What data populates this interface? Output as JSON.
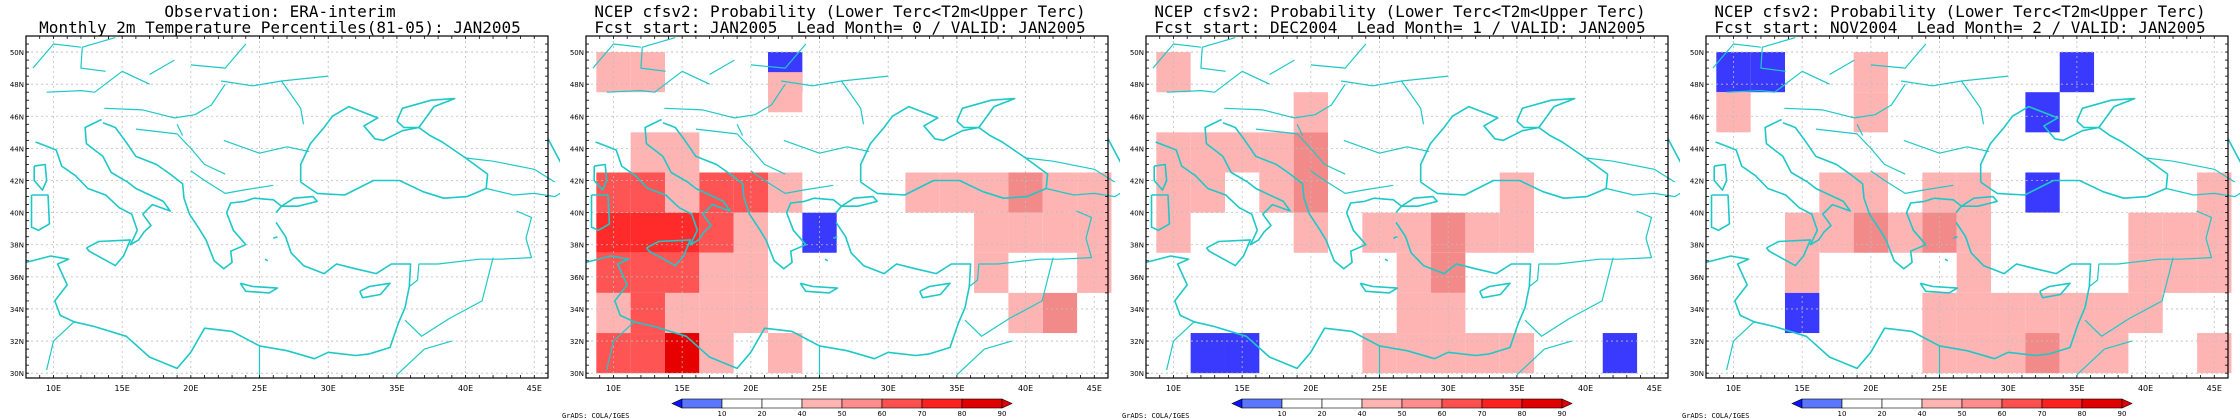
{
  "panels": [
    {
      "id": "obs",
      "title_lines": [
        "Observation: ERA-interim",
        "Monthly 2m Temperature Percentiles(81-05): JAN2005"
      ],
      "has_colorbar": false,
      "credit": ""
    },
    {
      "id": "lead0",
      "title_lines": [
        "NCEP cfsv2: Probability (Lower Terc<T2m<Upper Terc)",
        "Fcst start: JAN2005  Lead Month= 0 / VALID: JAN2005"
      ],
      "has_colorbar": true,
      "credit": "GrADS: COLA/IGES"
    },
    {
      "id": "lead1",
      "title_lines": [
        "NCEP cfsv2: Probability (Lower Terc<T2m<Upper Terc)",
        "Fcst start: DEC2004  Lead Month= 1 / VALID: JAN2005"
      ],
      "has_colorbar": true,
      "credit": "GrADS: COLA/IGES"
    },
    {
      "id": "lead2",
      "title_lines": [
        "NCEP cfsv2: Probability (Lower Terc<T2m<Upper Terc)",
        "Fcst start: NOV2004  Lead Month= 2 / VALID: JAN2005"
      ],
      "has_colorbar": true,
      "credit": "GrADS: COLA/IGES"
    }
  ],
  "map": {
    "lon_range": [
      8,
      46
    ],
    "lat_range": [
      29.7,
      51
    ],
    "lon_ticks": [
      "10E",
      "15E",
      "20E",
      "25E",
      "30E",
      "35E",
      "40E",
      "45E"
    ],
    "lat_ticks": [
      "30N",
      "32N",
      "34N",
      "36N",
      "38N",
      "40N",
      "42N",
      "44N",
      "46N",
      "48N",
      "50N"
    ],
    "coast_color": "#1ec8c8",
    "grid": true
  },
  "colorbar": {
    "tick_labels": [
      "10",
      "20",
      "40",
      "50",
      "60",
      "70",
      "80",
      "90"
    ],
    "colors": [
      "#0a14ff",
      "#5a78ff",
      "#ffffff",
      "#ffb4b4",
      "#ff8c8c",
      "#ff5050",
      "#ff2020",
      "#e00000"
    ]
  },
  "cell_colors": {
    "b": "#3a3aff",
    "p1": "#ffb4b4",
    "p2": "#f28a8a",
    "r1": "#ff5454",
    "r2": "#ff2a2a",
    "r3": "#e60000"
  },
  "cells": {
    "obs": [],
    "lead1_note": "2.5 degree grid cells [lon, lat, color-key]",
    "lead0": [
      [
        10,
        48.75,
        "p1"
      ],
      [
        12.5,
        48.75,
        "p1"
      ],
      [
        22.5,
        48.75,
        "b"
      ],
      [
        22.5,
        47.5,
        "p1"
      ],
      [
        12.5,
        43.75,
        "p1"
      ],
      [
        15,
        43.75,
        "p1"
      ],
      [
        10,
        41.25,
        "r1"
      ],
      [
        12.5,
        41.25,
        "r1"
      ],
      [
        15,
        41.25,
        "p1"
      ],
      [
        17.5,
        41.25,
        "r1"
      ],
      [
        20,
        41.25,
        "r1"
      ],
      [
        22.5,
        41.25,
        "p1"
      ],
      [
        10,
        38.75,
        "r2"
      ],
      [
        12.5,
        38.75,
        "r2"
      ],
      [
        15,
        38.75,
        "r2"
      ],
      [
        17.5,
        38.75,
        "r1"
      ],
      [
        20,
        38.75,
        "p1"
      ],
      [
        10,
        36.25,
        "r1"
      ],
      [
        12.5,
        36.25,
        "r1"
      ],
      [
        15,
        36.25,
        "r1"
      ],
      [
        17.5,
        36.25,
        "p1"
      ],
      [
        20,
        36.25,
        "p1"
      ],
      [
        10,
        33.75,
        "p1"
      ],
      [
        12.5,
        33.75,
        "r1"
      ],
      [
        15,
        33.75,
        "p1"
      ],
      [
        17.5,
        33.75,
        "p1"
      ],
      [
        20,
        33.75,
        "p1"
      ],
      [
        10,
        31.25,
        "r1"
      ],
      [
        12.5,
        31.25,
        "r1"
      ],
      [
        15,
        31.25,
        "r3"
      ],
      [
        17.5,
        31.25,
        "p1"
      ],
      [
        22.5,
        31.25,
        "p1"
      ],
      [
        25,
        38.75,
        "b"
      ],
      [
        32.5,
        41.25,
        "p1"
      ],
      [
        35,
        41.25,
        "p1"
      ],
      [
        37.5,
        41.25,
        "p1"
      ],
      [
        40,
        41.25,
        "p2"
      ],
      [
        42.5,
        41.25,
        "p1"
      ],
      [
        45,
        41.25,
        "p1"
      ],
      [
        37.5,
        38.75,
        "p1"
      ],
      [
        40,
        38.75,
        "p1"
      ],
      [
        42.5,
        38.75,
        "p1"
      ],
      [
        45,
        38.75,
        "p1"
      ],
      [
        37.5,
        36.25,
        "p1"
      ],
      [
        45,
        36.25,
        "p1"
      ],
      [
        42.5,
        33.75,
        "p2"
      ],
      [
        40,
        33.75,
        "p1"
      ]
    ],
    "lead1": [
      [
        10,
        48.75,
        "p1"
      ],
      [
        20,
        46.25,
        "p1"
      ],
      [
        10,
        43.75,
        "p1"
      ],
      [
        12.5,
        43.75,
        "p1"
      ],
      [
        15,
        43.75,
        "p1"
      ],
      [
        17.5,
        43.75,
        "p1"
      ],
      [
        20,
        43.75,
        "p2"
      ],
      [
        10,
        41.25,
        "p1"
      ],
      [
        12.5,
        41.25,
        "p1"
      ],
      [
        17.5,
        41.25,
        "p1"
      ],
      [
        20,
        41.25,
        "p2"
      ],
      [
        10,
        38.75,
        "p1"
      ],
      [
        20,
        38.75,
        "p1"
      ],
      [
        25,
        38.75,
        "p1"
      ],
      [
        27.5,
        38.75,
        "p1"
      ],
      [
        30,
        38.75,
        "p2"
      ],
      [
        32.5,
        38.75,
        "p1"
      ],
      [
        35,
        38.75,
        "p1"
      ],
      [
        35,
        41.25,
        "p1"
      ],
      [
        27.5,
        36.25,
        "p1"
      ],
      [
        30,
        36.25,
        "p2"
      ],
      [
        27.5,
        33.75,
        "p1"
      ],
      [
        30,
        33.75,
        "p1"
      ],
      [
        25,
        31.25,
        "p1"
      ],
      [
        27.5,
        31.25,
        "p1"
      ],
      [
        30,
        31.25,
        "p1"
      ],
      [
        32.5,
        31.25,
        "p1"
      ],
      [
        35,
        31.25,
        "p1"
      ],
      [
        12.5,
        31.25,
        "b"
      ],
      [
        15,
        31.25,
        "b"
      ],
      [
        42.5,
        31.25,
        "b"
      ]
    ],
    "lead2": [
      [
        10,
        48.75,
        "b"
      ],
      [
        12.5,
        48.75,
        "b"
      ],
      [
        20,
        48.75,
        "p1"
      ],
      [
        35,
        48.75,
        "b"
      ],
      [
        10,
        46.25,
        "p1"
      ],
      [
        20,
        46.25,
        "p1"
      ],
      [
        32.5,
        46.25,
        "b"
      ],
      [
        17.5,
        41.25,
        "p1"
      ],
      [
        20,
        41.25,
        "p1"
      ],
      [
        25,
        41.25,
        "p1"
      ],
      [
        27.5,
        41.25,
        "p1"
      ],
      [
        32.5,
        41.25,
        "b"
      ],
      [
        45,
        41.25,
        "p1"
      ],
      [
        15,
        38.75,
        "p1"
      ],
      [
        17.5,
        38.75,
        "p1"
      ],
      [
        20,
        38.75,
        "p2"
      ],
      [
        22.5,
        38.75,
        "p1"
      ],
      [
        25,
        38.75,
        "p2"
      ],
      [
        27.5,
        38.75,
        "p1"
      ],
      [
        40,
        38.75,
        "p1"
      ],
      [
        42.5,
        38.75,
        "p1"
      ],
      [
        45,
        38.75,
        "p1"
      ],
      [
        15,
        36.25,
        "p1"
      ],
      [
        27.5,
        36.25,
        "p1"
      ],
      [
        40,
        36.25,
        "p1"
      ],
      [
        42.5,
        36.25,
        "p1"
      ],
      [
        45,
        36.25,
        "p1"
      ],
      [
        15,
        33.75,
        "b"
      ],
      [
        25,
        33.75,
        "p1"
      ],
      [
        27.5,
        33.75,
        "p1"
      ],
      [
        30,
        33.75,
        "p1"
      ],
      [
        32.5,
        33.75,
        "p1"
      ],
      [
        35,
        33.75,
        "p1"
      ],
      [
        37.5,
        33.75,
        "p1"
      ],
      [
        40,
        33.75,
        "p1"
      ],
      [
        25,
        31.25,
        "p1"
      ],
      [
        27.5,
        31.25,
        "p1"
      ],
      [
        30,
        31.25,
        "p1"
      ],
      [
        32.5,
        31.25,
        "p2"
      ],
      [
        35,
        31.25,
        "p1"
      ],
      [
        37.5,
        31.25,
        "p1"
      ],
      [
        45,
        31.25,
        "p1"
      ]
    ]
  }
}
